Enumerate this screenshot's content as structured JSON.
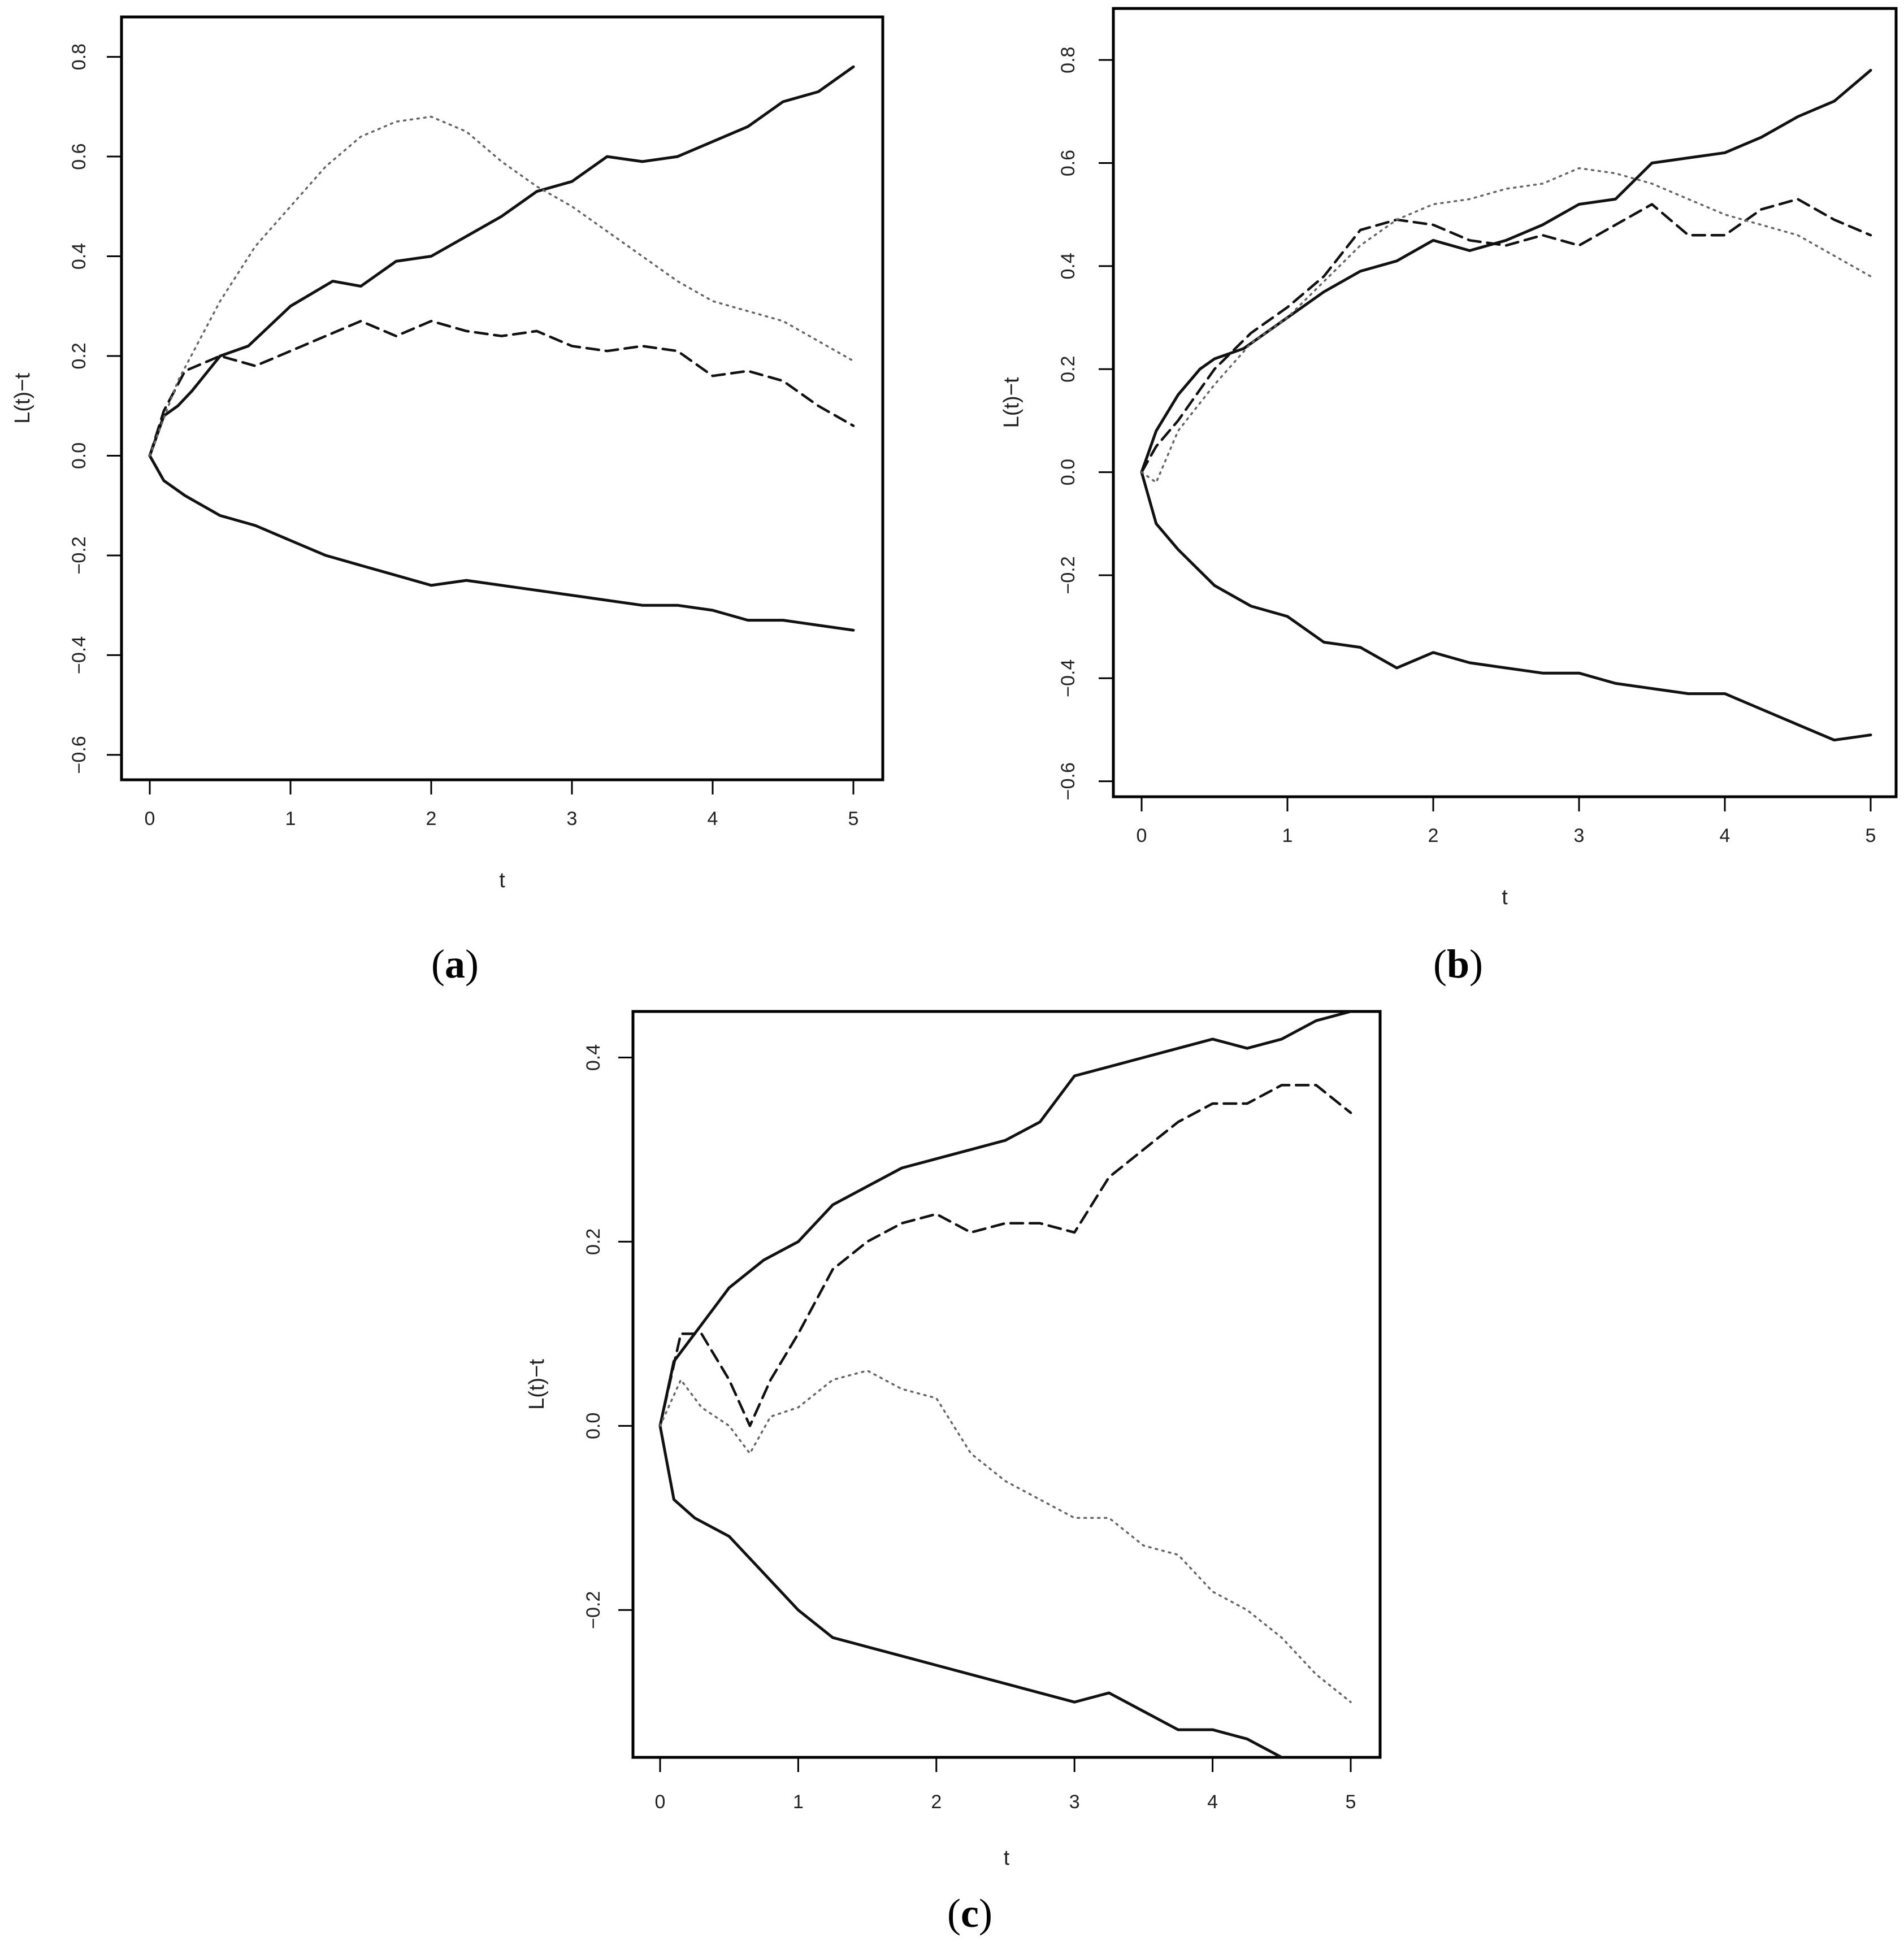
{
  "panels": [
    {
      "tag": "(a)",
      "tag_letter": "a",
      "chart_data": {
        "type": "line",
        "title": "",
        "xlabel": "t",
        "ylabel": "L(t)−t",
        "xlim": [
          0,
          5
        ],
        "ylim": [
          -0.65,
          0.88
        ],
        "xticks": [
          0,
          1,
          2,
          3,
          4,
          5
        ],
        "yticks": [
          -0.6,
          -0.4,
          -0.2,
          0.0,
          0.2,
          0.4,
          0.6,
          0.8
        ],
        "ytick_labels": [
          "−0.6",
          "−0.4",
          "−0.2",
          "0.0",
          "0.2",
          "0.4",
          "0.6",
          "0.8"
        ],
        "grid": false,
        "legend": "none",
        "series": [
          {
            "style": "solid",
            "x": [
              0,
              0.1,
              0.2,
              0.3,
              0.5,
              0.7,
              1.0,
              1.3,
              1.5,
              1.75,
              2.0,
              2.25,
              2.5,
              2.75,
              3.0,
              3.25,
              3.5,
              3.75,
              4.0,
              4.25,
              4.5,
              4.75,
              5.0
            ],
            "y": [
              0,
              0.08,
              0.1,
              0.13,
              0.2,
              0.22,
              0.3,
              0.35,
              0.34,
              0.39,
              0.4,
              0.44,
              0.48,
              0.53,
              0.55,
              0.6,
              0.59,
              0.6,
              0.63,
              0.66,
              0.71,
              0.73,
              0.78
            ]
          },
          {
            "style": "solid",
            "x": [
              0,
              0.1,
              0.25,
              0.5,
              0.75,
              1.0,
              1.25,
              1.5,
              1.75,
              2.0,
              2.25,
              2.5,
              2.75,
              3.0,
              3.25,
              3.5,
              3.75,
              4.0,
              4.25,
              4.5,
              4.75,
              5.0
            ],
            "y": [
              0,
              -0.05,
              -0.08,
              -0.12,
              -0.14,
              -0.17,
              -0.2,
              -0.22,
              -0.24,
              -0.26,
              -0.25,
              -0.26,
              -0.27,
              -0.28,
              -0.29,
              -0.3,
              -0.3,
              -0.31,
              -0.33,
              -0.33,
              -0.34,
              -0.35
            ]
          },
          {
            "style": "dashed",
            "x": [
              0,
              0.1,
              0.25,
              0.5,
              0.75,
              1.0,
              1.25,
              1.5,
              1.75,
              2.0,
              2.25,
              2.5,
              2.75,
              3.0,
              3.25,
              3.5,
              3.75,
              4.0,
              4.25,
              4.5,
              4.75,
              5.0
            ],
            "y": [
              0,
              0.09,
              0.17,
              0.2,
              0.18,
              0.21,
              0.24,
              0.27,
              0.24,
              0.27,
              0.25,
              0.24,
              0.25,
              0.22,
              0.21,
              0.22,
              0.21,
              0.16,
              0.17,
              0.15,
              0.1,
              0.06
            ]
          },
          {
            "style": "dotted",
            "x": [
              0,
              0.2,
              0.5,
              0.75,
              1.0,
              1.25,
              1.5,
              1.75,
              2.0,
              2.25,
              2.5,
              2.75,
              3.0,
              3.25,
              3.5,
              3.75,
              4.0,
              4.25,
              4.5,
              4.75,
              5.0
            ],
            "y": [
              0,
              0.15,
              0.31,
              0.42,
              0.5,
              0.58,
              0.64,
              0.67,
              0.68,
              0.65,
              0.59,
              0.54,
              0.5,
              0.45,
              0.4,
              0.35,
              0.31,
              0.29,
              0.27,
              0.23,
              0.19
            ]
          }
        ]
      }
    },
    {
      "tag": "(b)",
      "tag_letter": "b",
      "chart_data": {
        "type": "line",
        "title": "",
        "xlabel": "t",
        "ylabel": "L(t)−t",
        "xlim": [
          0,
          5
        ],
        "ylim": [
          -0.63,
          0.9
        ],
        "xticks": [
          0,
          1,
          2,
          3,
          4,
          5
        ],
        "yticks": [
          -0.6,
          -0.4,
          -0.2,
          0.0,
          0.2,
          0.4,
          0.6,
          0.8
        ],
        "ytick_labels": [
          "−0.6",
          "−0.4",
          "−0.2",
          "0.0",
          "0.2",
          "0.4",
          "0.6",
          "0.8"
        ],
        "grid": false,
        "legend": "none",
        "series": [
          {
            "style": "solid",
            "x": [
              0,
              0.1,
              0.25,
              0.4,
              0.5,
              0.7,
              1.0,
              1.25,
              1.5,
              1.75,
              2.0,
              2.25,
              2.5,
              2.75,
              3.0,
              3.25,
              3.5,
              3.75,
              4.0,
              4.25,
              4.5,
              4.75,
              5.0
            ],
            "y": [
              0,
              0.08,
              0.15,
              0.2,
              0.22,
              0.24,
              0.3,
              0.35,
              0.39,
              0.41,
              0.45,
              0.43,
              0.45,
              0.48,
              0.52,
              0.53,
              0.6,
              0.61,
              0.62,
              0.65,
              0.69,
              0.72,
              0.78
            ]
          },
          {
            "style": "solid",
            "x": [
              0,
              0.1,
              0.25,
              0.5,
              0.75,
              1.0,
              1.25,
              1.5,
              1.75,
              2.0,
              2.25,
              2.5,
              2.75,
              3.0,
              3.25,
              3.5,
              3.75,
              4.0,
              4.25,
              4.5,
              4.75,
              5.0
            ],
            "y": [
              0,
              -0.1,
              -0.15,
              -0.22,
              -0.26,
              -0.28,
              -0.33,
              -0.34,
              -0.38,
              -0.35,
              -0.37,
              -0.38,
              -0.39,
              -0.39,
              -0.41,
              -0.42,
              -0.43,
              -0.43,
              -0.46,
              -0.49,
              -0.52,
              -0.51
            ]
          },
          {
            "style": "dashed",
            "x": [
              0,
              0.1,
              0.25,
              0.5,
              0.75,
              1.0,
              1.25,
              1.5,
              1.75,
              2.0,
              2.25,
              2.5,
              2.75,
              3.0,
              3.25,
              3.5,
              3.75,
              4.0,
              4.25,
              4.5,
              4.75,
              5.0
            ],
            "y": [
              0,
              0.05,
              0.1,
              0.2,
              0.27,
              0.32,
              0.38,
              0.47,
              0.49,
              0.48,
              0.45,
              0.44,
              0.46,
              0.44,
              0.48,
              0.52,
              0.46,
              0.46,
              0.51,
              0.53,
              0.49,
              0.46
            ]
          },
          {
            "style": "dotted",
            "x": [
              0,
              0.1,
              0.25,
              0.5,
              0.75,
              1.0,
              1.25,
              1.5,
              1.75,
              2.0,
              2.25,
              2.5,
              2.75,
              3.0,
              3.25,
              3.5,
              3.75,
              4.0,
              4.25,
              4.5,
              4.75,
              5.0
            ],
            "y": [
              0,
              -0.02,
              0.08,
              0.17,
              0.25,
              0.3,
              0.37,
              0.44,
              0.49,
              0.52,
              0.53,
              0.55,
              0.56,
              0.59,
              0.58,
              0.56,
              0.53,
              0.5,
              0.48,
              0.46,
              0.42,
              0.38
            ]
          }
        ]
      }
    },
    {
      "tag": "(c)",
      "tag_letter": "c",
      "chart_data": {
        "type": "line",
        "title": "",
        "xlabel": "t",
        "ylabel": "L(t)−t",
        "xlim": [
          0,
          5
        ],
        "ylim": [
          -0.36,
          0.45
        ],
        "xticks": [
          0,
          1,
          2,
          3,
          4,
          5
        ],
        "yticks": [
          -0.2,
          0.0,
          0.2,
          0.4
        ],
        "ytick_labels": [
          "−0.2",
          "0.0",
          "0.2",
          "0.4"
        ],
        "grid": false,
        "legend": "none",
        "series": [
          {
            "style": "solid",
            "x": [
              0,
              0.1,
              0.25,
              0.5,
              0.75,
              1.0,
              1.25,
              1.5,
              1.75,
              2.0,
              2.25,
              2.5,
              2.75,
              3.0,
              3.25,
              3.5,
              3.75,
              4.0,
              4.25,
              4.5,
              4.75,
              5.0
            ],
            "y": [
              0,
              0.07,
              0.1,
              0.15,
              0.18,
              0.2,
              0.24,
              0.26,
              0.28,
              0.29,
              0.3,
              0.31,
              0.33,
              0.38,
              0.39,
              0.4,
              0.41,
              0.42,
              0.41,
              0.42,
              0.44,
              0.45
            ]
          },
          {
            "style": "solid",
            "x": [
              0,
              0.1,
              0.25,
              0.5,
              0.75,
              1.0,
              1.25,
              1.5,
              1.75,
              2.0,
              2.25,
              2.5,
              2.75,
              3.0,
              3.25,
              3.5,
              3.75,
              4.0,
              4.25,
              4.5
            ],
            "y": [
              0,
              -0.08,
              -0.1,
              -0.12,
              -0.16,
              -0.2,
              -0.23,
              -0.24,
              -0.25,
              -0.26,
              -0.27,
              -0.28,
              -0.29,
              -0.3,
              -0.29,
              -0.31,
              -0.33,
              -0.33,
              -0.34,
              -0.36
            ]
          },
          {
            "style": "dashed",
            "x": [
              0,
              0.15,
              0.3,
              0.5,
              0.65,
              0.8,
              1.0,
              1.25,
              1.5,
              1.75,
              2.0,
              2.25,
              2.5,
              2.75,
              3.0,
              3.25,
              3.5,
              3.75,
              4.0,
              4.25,
              4.5,
              4.75,
              5.0
            ],
            "y": [
              0,
              0.1,
              0.1,
              0.05,
              0.0,
              0.05,
              0.1,
              0.17,
              0.2,
              0.22,
              0.23,
              0.21,
              0.22,
              0.22,
              0.21,
              0.27,
              0.3,
              0.33,
              0.35,
              0.35,
              0.37,
              0.37,
              0.34
            ]
          },
          {
            "style": "dotted",
            "x": [
              0,
              0.15,
              0.3,
              0.5,
              0.65,
              0.8,
              1.0,
              1.25,
              1.5,
              1.75,
              2.0,
              2.25,
              2.5,
              2.75,
              3.0,
              3.25,
              3.5,
              3.75,
              4.0,
              4.25,
              4.5,
              4.75,
              5.0
            ],
            "y": [
              0,
              0.05,
              0.02,
              0.0,
              -0.03,
              0.01,
              0.02,
              0.05,
              0.06,
              0.04,
              0.03,
              -0.03,
              -0.06,
              -0.08,
              -0.1,
              -0.1,
              -0.13,
              -0.14,
              -0.18,
              -0.2,
              -0.23,
              -0.27,
              -0.3
            ]
          }
        ]
      }
    }
  ]
}
